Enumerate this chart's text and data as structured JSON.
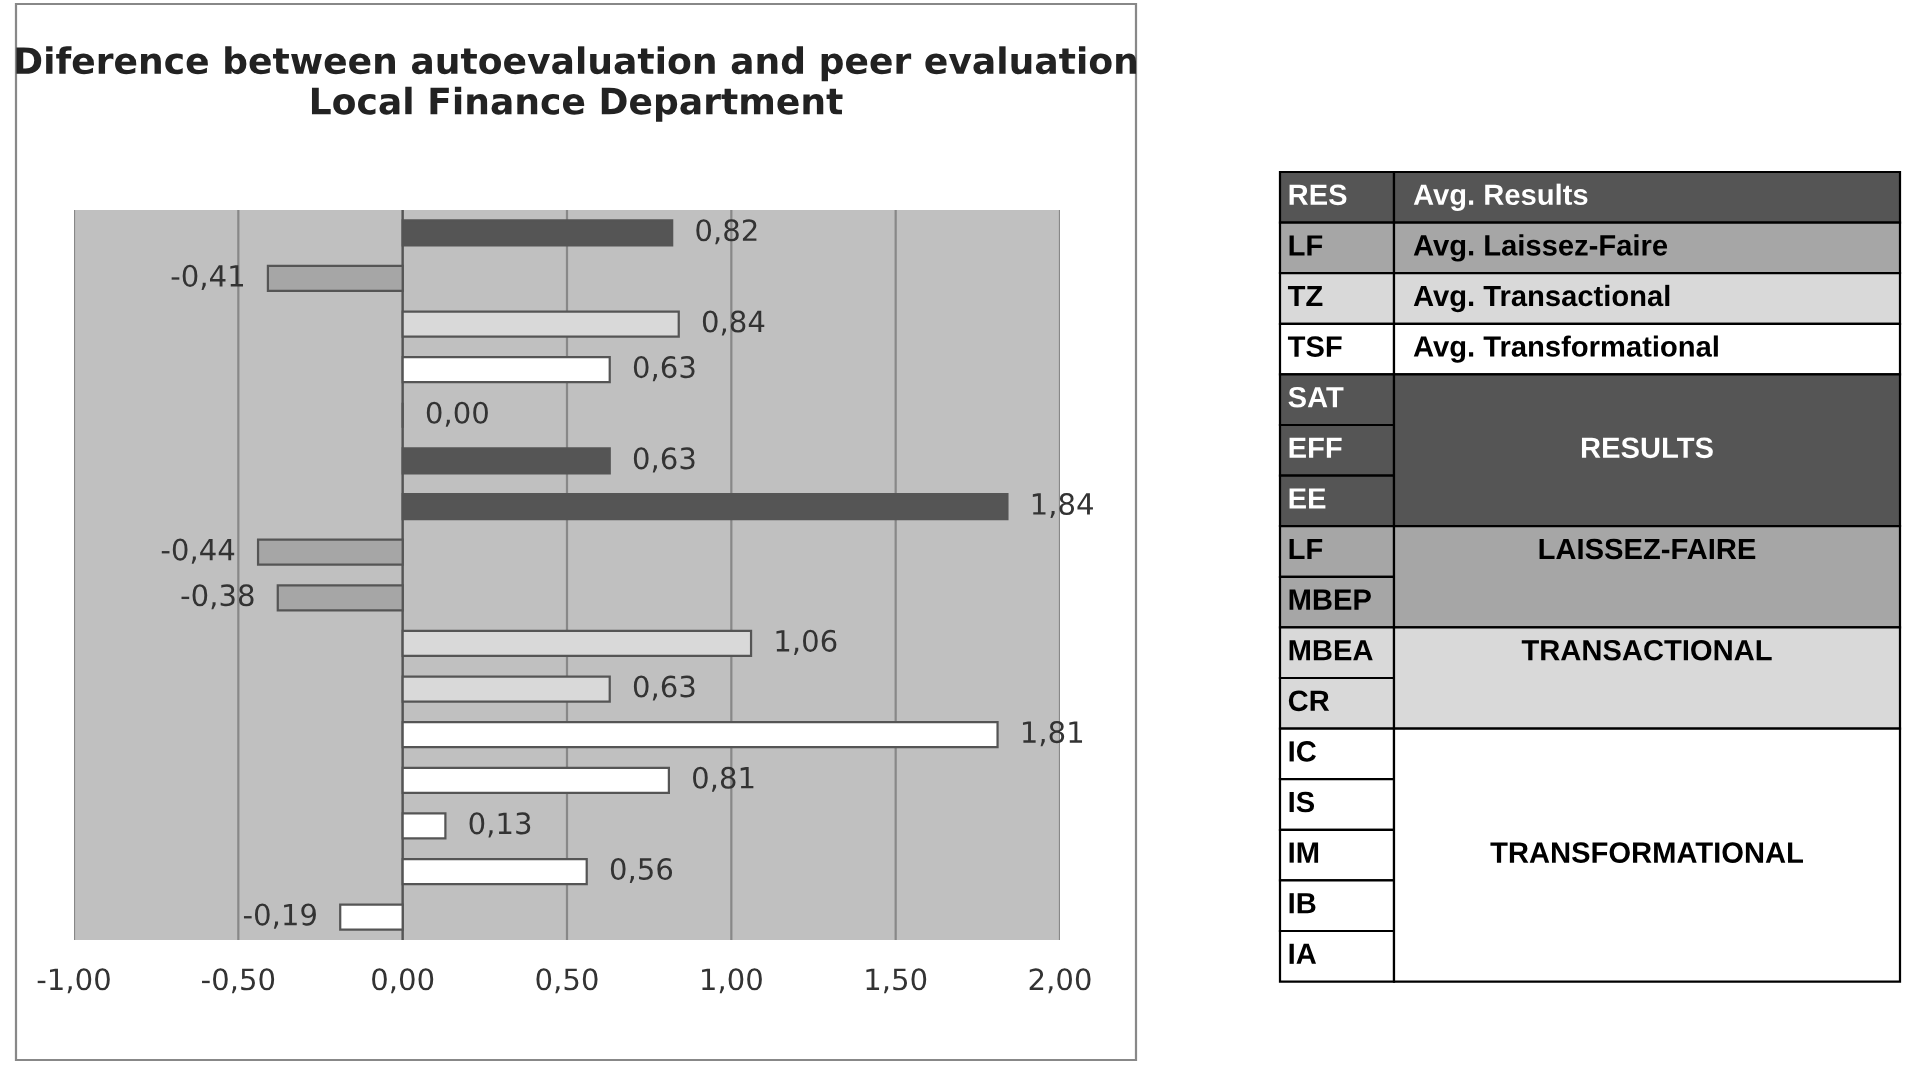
{
  "chart_data": {
    "type": "bar",
    "orientation": "horizontal",
    "title": "Diference between autoevaluation and peer evaluation Local Finance Department",
    "categories": [
      null,
      null,
      null,
      null,
      null,
      null,
      null,
      null,
      null,
      null,
      null,
      null,
      null,
      null,
      null,
      null
    ],
    "values": [
      0.82,
      -0.41,
      0.84,
      0.63,
      0.0,
      0.63,
      1.84,
      -0.44,
      -0.38,
      1.06,
      0.63,
      1.81,
      0.81,
      0.13,
      0.56,
      -0.19
    ],
    "value_labels": [
      "0,82",
      "-0,41",
      "0,84",
      "0,63",
      "0,00",
      "0,63",
      "1,84",
      "-0,44",
      "-0,38",
      "1,06",
      "0,63",
      "1,81",
      "0,81",
      "0,13",
      "0,56",
      "-0,19"
    ],
    "colors": [
      "#555555",
      "#a6a6a6",
      "#d9d9d9",
      "#ffffff",
      "#555555",
      "#555555",
      "#555555",
      "#a6a6a6",
      "#a6a6a6",
      "#d9d9d9",
      "#d9d9d9",
      "#ffffff",
      "#ffffff",
      "#ffffff",
      "#ffffff",
      "#ffffff"
    ],
    "xlim": [
      -1.0,
      2.0
    ],
    "xticks": [
      {
        "value": -1.0,
        "label": "-1,00"
      },
      {
        "value": -0.5,
        "label": "-0,50"
      },
      {
        "value": 0.0,
        "label": "0,00"
      },
      {
        "value": 0.5,
        "label": "0,50"
      },
      {
        "value": 1.0,
        "label": "1,00"
      },
      {
        "value": 1.5,
        "label": "1,50"
      },
      {
        "value": 2.0,
        "label": "2,00"
      }
    ],
    "grid": "x",
    "tick_labels": "x",
    "annotations": [
      "RES",
      "LF",
      "TZ",
      "TSF",
      "SAT",
      "EFF",
      "EE",
      "LF",
      "MBEP",
      "MBEA",
      "CR",
      "IC",
      "IS",
      "IM",
      "IB",
      "IA",
      "Avg. Results",
      "Avg. Laissez-Faire",
      "Avg. Transactional",
      "Avg. Transformational",
      "RESULTS",
      "LAISSEZ-FAIRE",
      "TRANSACTIONAL",
      "TRANSFORMATIONAL"
    ]
  }
}
